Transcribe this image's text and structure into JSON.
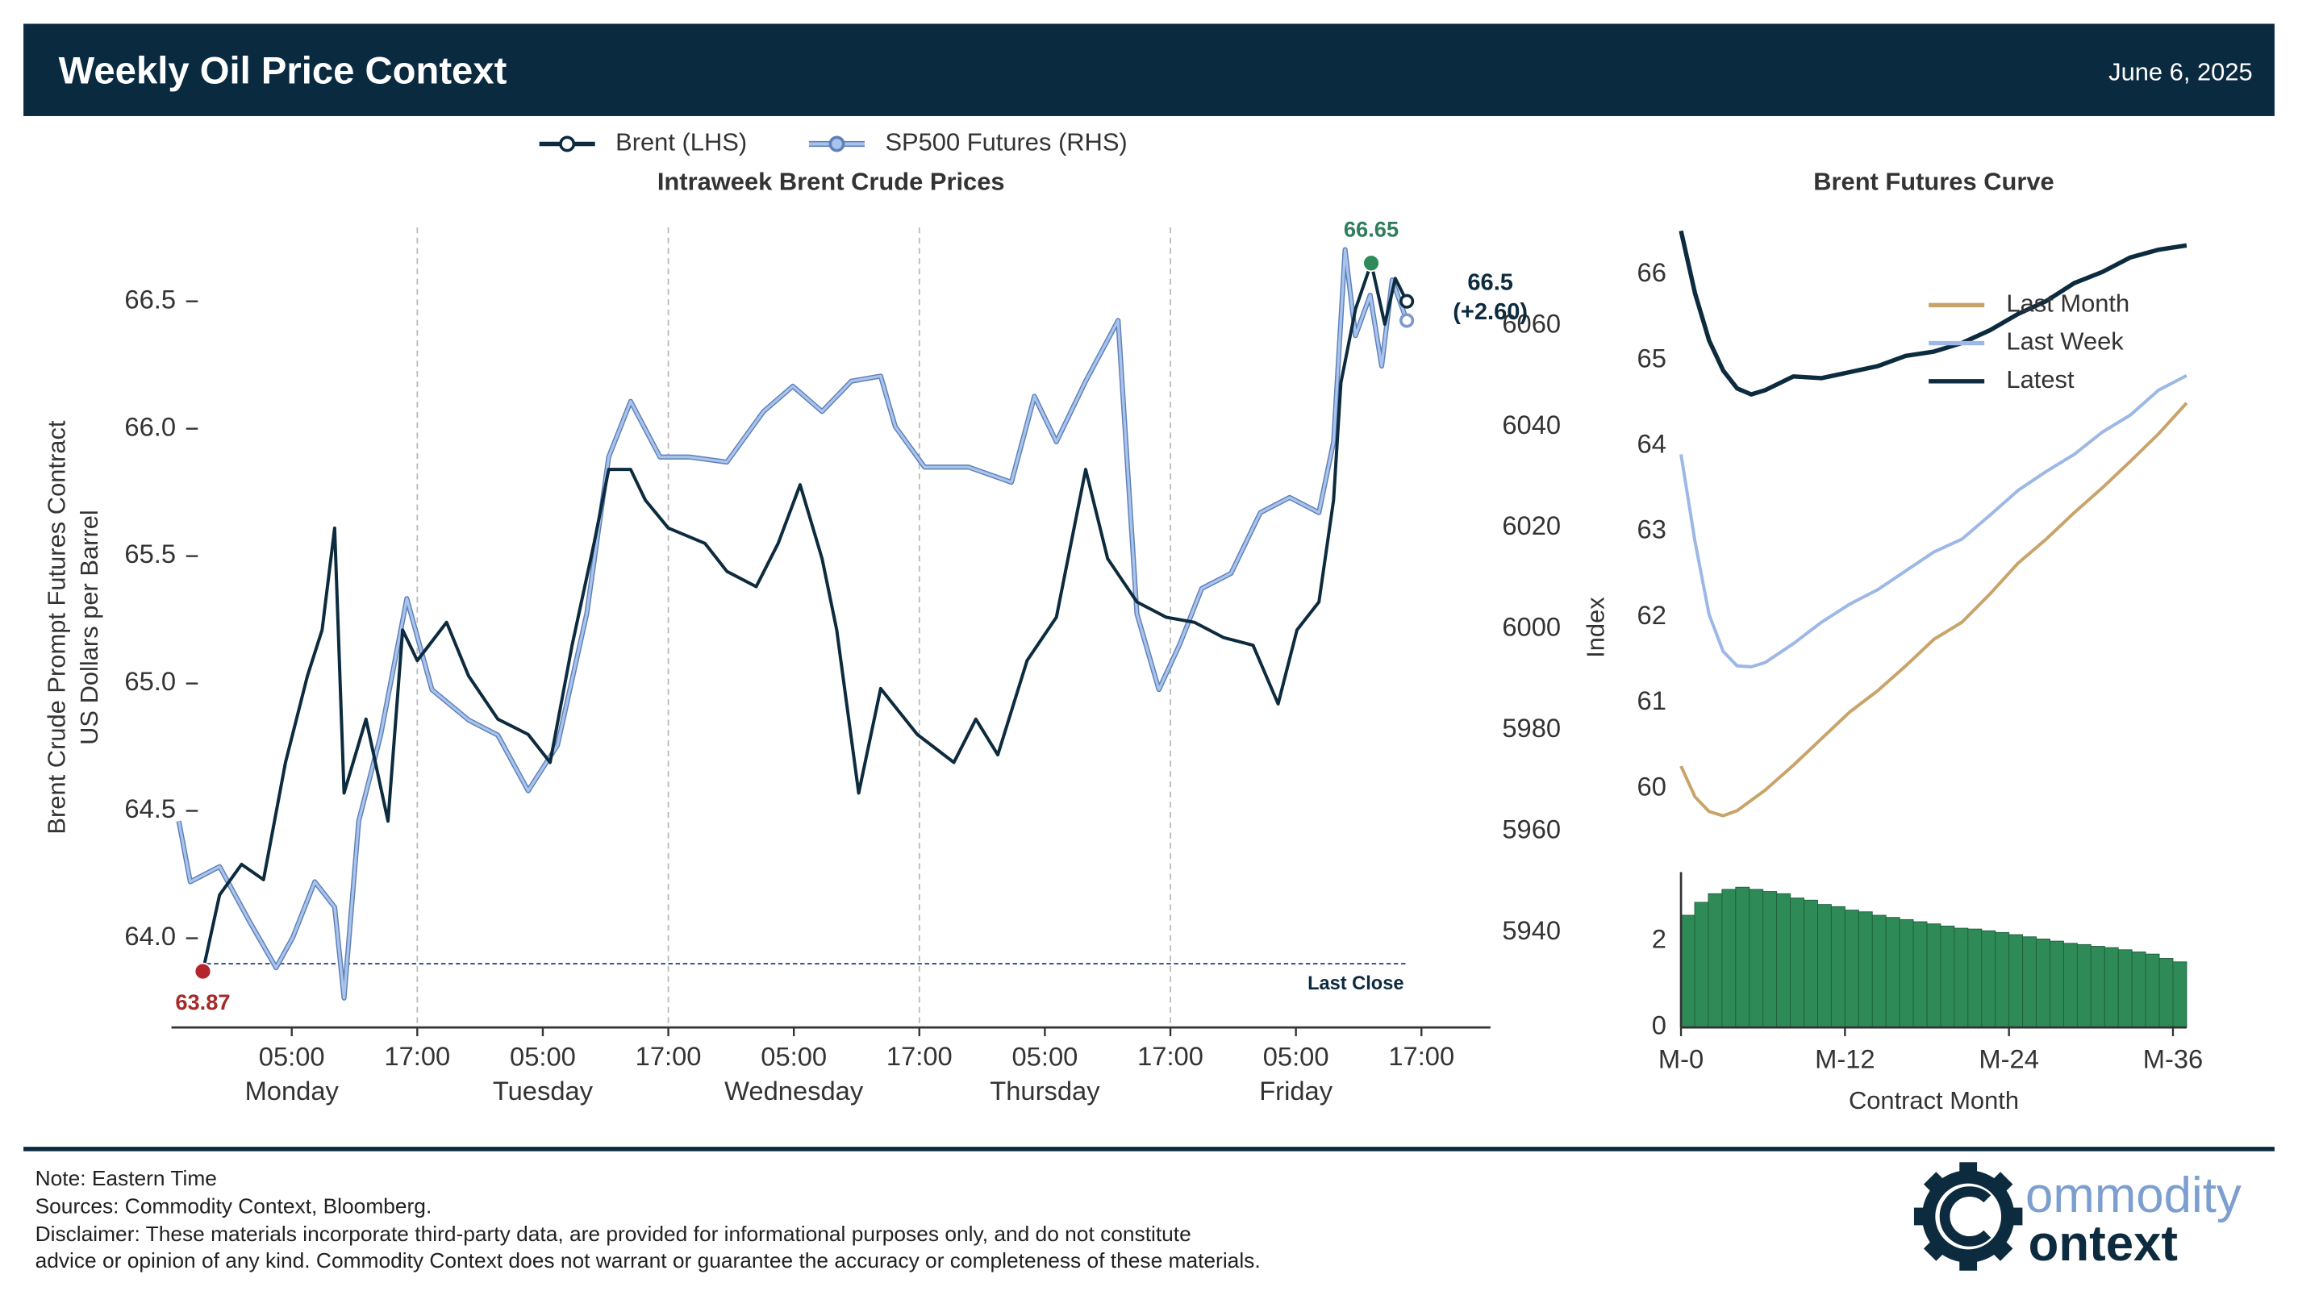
{
  "header": {
    "title": "Weekly Oil Price Context",
    "date": "June 6, 2025"
  },
  "chart_data": [
    {
      "type": "line",
      "title": "Intraweek Brent Crude Prices",
      "ylabel": "Brent Crude Prompt Futures Contract\nUS Dollars per Barrel",
      "y2label": "Index",
      "xlim": [
        -6.5,
        119.6
      ],
      "xticks": [
        {
          "value": 5,
          "label": "05:00\nMonday"
        },
        {
          "value": 17,
          "label": "17:00"
        },
        {
          "value": 29,
          "label": "05:00\nTuesday"
        },
        {
          "value": 41,
          "label": "17:00"
        },
        {
          "value": 53,
          "label": "05:00\nWednesday"
        },
        {
          "value": 65,
          "label": "17:00"
        },
        {
          "value": 77,
          "label": "05:00\nThursday"
        },
        {
          "value": 89,
          "label": "17:00"
        },
        {
          "value": 101,
          "label": "05:00\nFriday"
        },
        {
          "value": 113,
          "label": "17:00"
        }
      ],
      "ylim": [
        63.65,
        66.79
      ],
      "yticks": [
        {
          "value": 64,
          "label": "64.0"
        },
        64.5,
        {
          "value": 65,
          "label": "65.0"
        },
        65.5,
        {
          "value": 66,
          "label": "66.0"
        },
        66.5
      ],
      "y2lim": [
        5921.2,
        6079.4
      ],
      "y2ticks": [
        5940,
        5960,
        5980,
        6000,
        6020,
        6040,
        6060
      ],
      "grid": "x",
      "legend": "top",
      "end_markers": true,
      "series": [
        {
          "name": "Brent (LHS)",
          "color": "#0d2b3e",
          "x": [
            -3.5,
            -1.9,
            0.2,
            2.3,
            4.4,
            6.5,
            7.9,
            9.1,
            10.0,
            12.1,
            14.2,
            15.6,
            17.0,
            19.8,
            21.9,
            24.7,
            27.6,
            29.7,
            31.8,
            33.9,
            35.3,
            37.4,
            38.8,
            41.0,
            44.5,
            46.6,
            49.4,
            51.5,
            53.6,
            55.7,
            57.1,
            59.2,
            61.3,
            64.8,
            68.3,
            70.4,
            72.5,
            75.3,
            78.1,
            80.9,
            83.0,
            85.8,
            88.6,
            91.3,
            94.1,
            96.9,
            99.3,
            101.1,
            103.2,
            104.6,
            105.3,
            106.7,
            108.2,
            109.5,
            110.5,
            111.6
          ],
          "values": [
            63.87,
            64.17,
            64.29,
            64.23,
            64.69,
            65.03,
            65.21,
            65.61,
            64.57,
            64.86,
            64.46,
            65.21,
            65.09,
            65.24,
            65.03,
            64.86,
            64.8,
            64.69,
            65.15,
            65.55,
            65.84,
            65.84,
            65.72,
            65.61,
            65.55,
            65.44,
            65.38,
            65.55,
            65.78,
            65.49,
            65.21,
            64.57,
            64.98,
            64.8,
            64.69,
            64.86,
            64.72,
            65.09,
            65.26,
            65.84,
            65.49,
            65.32,
            65.26,
            65.24,
            65.18,
            65.15,
            64.92,
            65.21,
            65.32,
            65.72,
            66.18,
            66.47,
            66.65,
            66.41,
            66.59,
            66.5
          ]
        },
        {
          "name": "SP500 Futures (RHS)",
          "color": "#a9c4ec",
          "axis": "y2",
          "x": [
            -5.8,
            -4.7,
            -1.9,
            1.0,
            3.5,
            5.1,
            7.2,
            9.1,
            10.0,
            11.4,
            13.5,
            16.0,
            18.4,
            21.9,
            24.7,
            27.6,
            30.4,
            33.2,
            35.3,
            37.4,
            40.2,
            43.0,
            46.6,
            50.1,
            52.9,
            55.7,
            58.5,
            61.3,
            62.7,
            65.5,
            69.7,
            73.8,
            76.0,
            78.1,
            80.9,
            84.0,
            85.8,
            87.9,
            89.9,
            92.0,
            94.8,
            97.6,
            100.4,
            103.2,
            104.6,
            105.7,
            106.7,
            108.1,
            109.2,
            110.2,
            111.6
          ],
          "values": [
            5962,
            5950,
            5953,
            5942,
            5933,
            5939,
            5950,
            5945,
            5927,
            5962,
            5979,
            6006,
            5988,
            5982,
            5979,
            5968,
            5977,
            6003,
            6034,
            6045,
            6034,
            6034,
            6033,
            6043,
            6048,
            6043,
            6049,
            6050,
            6040,
            6032,
            6032,
            6029,
            6046,
            6037,
            6049,
            6061,
            6003,
            5988,
            5997,
            6008,
            6011,
            6023,
            6026,
            6023,
            6037,
            6075,
            6058,
            6066,
            6052,
            6069,
            6061
          ]
        }
      ],
      "high": {
        "x": 108.2,
        "value": 66.65
      },
      "low": {
        "x": -3.5,
        "value": 63.87
      },
      "last": {
        "x": 111.6,
        "value": 66.5,
        "change_label": "(+2.60)"
      },
      "last_close": {
        "value": 63.9,
        "label": "Last Close"
      }
    },
    {
      "type": "line",
      "title": "Brent Futures Curve",
      "legend": "upper right",
      "xlim": [
        0,
        36
      ],
      "ylim": [
        59.45,
        66.55
      ],
      "yticks": [
        60,
        61,
        62,
        63,
        64,
        65,
        66
      ],
      "x": [
        0,
        1,
        2,
        3,
        4,
        5,
        6,
        8,
        10,
        12,
        14,
        16,
        18,
        20,
        22,
        24,
        26,
        28,
        30,
        32,
        34,
        36
      ],
      "series": [
        {
          "name": "Last Month",
          "color": "#c9a46a",
          "values": [
            60.26,
            59.9,
            59.73,
            59.68,
            59.74,
            59.86,
            59.98,
            60.27,
            60.58,
            60.89,
            61.14,
            61.43,
            61.74,
            61.94,
            62.27,
            62.63,
            62.91,
            63.22,
            63.51,
            63.82,
            64.14,
            64.5
          ]
        },
        {
          "name": "Last Week",
          "color": "#9db8e6",
          "values": [
            63.9,
            62.88,
            62.03,
            61.6,
            61.43,
            61.42,
            61.47,
            61.69,
            61.94,
            62.15,
            62.32,
            62.54,
            62.76,
            62.91,
            63.19,
            63.48,
            63.7,
            63.9,
            64.16,
            64.36,
            64.65,
            64.82
          ]
        },
        {
          "name": "Latest",
          "color": "#0d2b3e",
          "values": [
            66.51,
            65.78,
            65.23,
            64.88,
            64.67,
            64.6,
            64.65,
            64.81,
            64.79,
            64.86,
            64.93,
            65.05,
            65.1,
            65.2,
            65.35,
            65.54,
            65.69,
            65.9,
            66.03,
            66.2,
            66.29,
            66.34
          ]
        }
      ]
    },
    {
      "type": "bar",
      "xlabel": "Contract Month",
      "color": "#2e8b57",
      "xlim": [
        0,
        37
      ],
      "ylim": [
        0,
        3.6
      ],
      "yticks": [
        0,
        2
      ],
      "xticks": [
        {
          "value": 0,
          "label": "M-0"
        },
        {
          "value": 12,
          "label": "M-12"
        },
        {
          "value": 24,
          "label": "M-24"
        },
        {
          "value": 36,
          "label": "M-36"
        }
      ],
      "x": [
        0,
        1,
        2,
        3,
        4,
        5,
        6,
        7,
        8,
        9,
        10,
        11,
        12,
        13,
        14,
        15,
        16,
        17,
        18,
        19,
        20,
        21,
        22,
        23,
        24,
        25,
        26,
        27,
        28,
        29,
        30,
        31,
        32,
        33,
        34,
        35,
        36
      ],
      "values": [
        2.6,
        2.9,
        3.1,
        3.2,
        3.25,
        3.2,
        3.15,
        3.1,
        3.0,
        2.95,
        2.85,
        2.8,
        2.72,
        2.68,
        2.6,
        2.55,
        2.5,
        2.45,
        2.4,
        2.35,
        2.3,
        2.28,
        2.24,
        2.2,
        2.15,
        2.1,
        2.05,
        2.0,
        1.95,
        1.92,
        1.88,
        1.85,
        1.8,
        1.75,
        1.7,
        1.6,
        1.52
      ]
    }
  ],
  "footer": {
    "lines": [
      "Note: Eastern Time",
      "Sources: Commodity Context, Bloomberg.",
      "Disclaimer: These materials incorporate third-party data, are provided for informational purposes only, and do not constitute",
      "advice or opinion of any kind. Commodity Context does not warrant or guarantee the accuracy or completeness of these materials."
    ],
    "logo": {
      "top": "ommodity",
      "bottom": "ontext"
    }
  }
}
